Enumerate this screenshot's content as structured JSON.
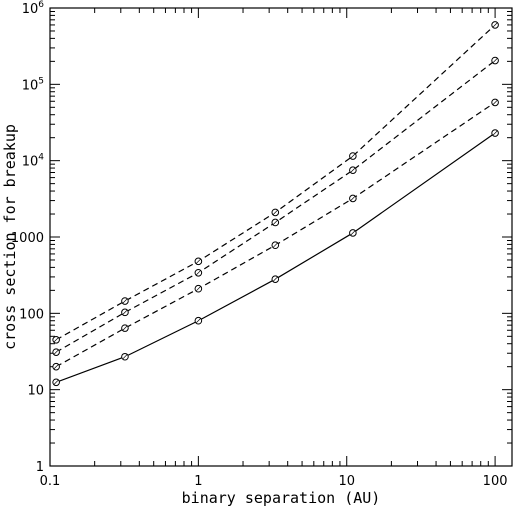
{
  "chart_data": {
    "type": "line",
    "title": "",
    "xlabel": "binary separation (AU)",
    "ylabel": "cross section for breakup",
    "xscale": "log",
    "yscale": "log",
    "xlim": [
      0.1,
      130
    ],
    "ylim": [
      1,
      1000000
    ],
    "grid": false,
    "x_ticks": [
      {
        "value": 0.1,
        "label": "0.1"
      },
      {
        "value": 1,
        "label": "1"
      },
      {
        "value": 10,
        "label": "10"
      },
      {
        "value": 100,
        "label": "100"
      }
    ],
    "y_ticks": [
      {
        "value": 1,
        "label": "1"
      },
      {
        "value": 10,
        "label": "10"
      },
      {
        "value": 100,
        "label": "100"
      },
      {
        "value": 1000,
        "label": "1000"
      },
      {
        "value": 10000,
        "label": "10",
        "exp": "4"
      },
      {
        "value": 100000,
        "label": "10",
        "exp": "5"
      },
      {
        "value": 1000000,
        "label": "10",
        "exp": "6"
      }
    ],
    "series": [
      {
        "style": "dashed",
        "x": [
          0.11,
          0.32,
          1.0,
          3.3,
          11,
          100
        ],
        "y": [
          45,
          145,
          480,
          2100,
          11500,
          600000
        ]
      },
      {
        "style": "dashed",
        "x": [
          0.11,
          0.32,
          1.0,
          3.3,
          11,
          100
        ],
        "y": [
          31,
          103,
          340,
          1550,
          7500,
          205000
        ]
      },
      {
        "style": "dashed",
        "x": [
          0.11,
          0.32,
          1.0,
          3.3,
          11,
          100
        ],
        "y": [
          20,
          64,
          210,
          780,
          3200,
          58000
        ]
      },
      {
        "style": "solid",
        "x": [
          0.11,
          0.32,
          1.0,
          3.3,
          11,
          100
        ],
        "y": [
          12.5,
          27,
          80,
          280,
          1130,
          23000
        ]
      }
    ]
  }
}
